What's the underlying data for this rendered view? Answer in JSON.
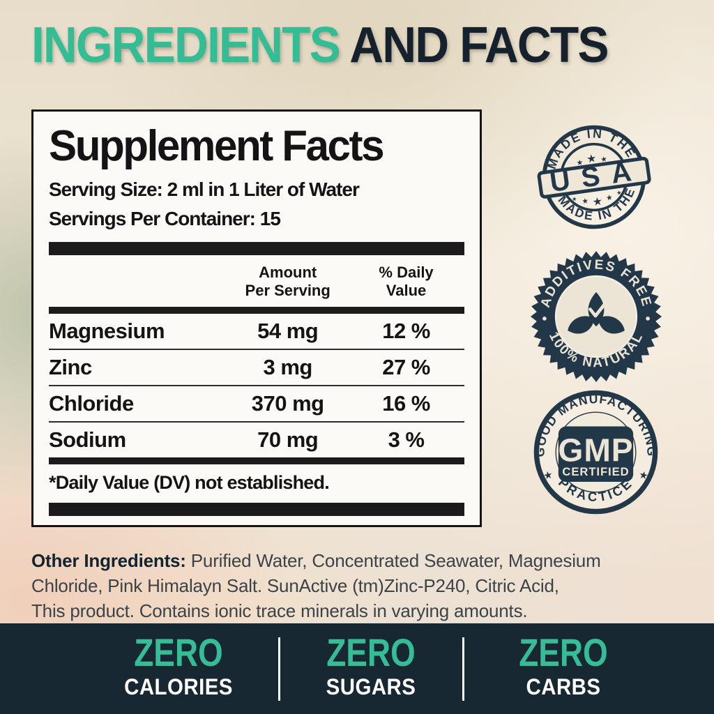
{
  "title": {
    "highlight": "INGREDIENTS",
    "rest": " AND FACTS"
  },
  "supplement_facts": {
    "heading": "Supplement Facts",
    "serving_size": "Serving Size: 2 ml in 1 Liter of Water",
    "servings_per_container": "Servings Per Container: 15",
    "columns": {
      "amount_line1": "Amount",
      "amount_line2": "Per Serving",
      "dv_line1": "% Daily",
      "dv_line2": "Value"
    },
    "rows": [
      {
        "name": "Magnesium",
        "amount": "54 mg",
        "daily_value": "12 %"
      },
      {
        "name": "Zinc",
        "amount": "3 mg",
        "daily_value": "27 %"
      },
      {
        "name": "Chloride",
        "amount": "370 mg",
        "daily_value": "16 %"
      },
      {
        "name": "Sodium",
        "amount": "70 mg",
        "daily_value": "3 %"
      }
    ],
    "footnote": "*Daily Value (DV) not established."
  },
  "badges": {
    "usa": {
      "arc_top": "MADE IN THE",
      "center": "USA",
      "arc_bottom": "MADE IN THE"
    },
    "natural": {
      "arc_top": "ADDITIVES FREE",
      "arc_bottom": "100% NATURAL"
    },
    "gmp": {
      "arc_top": "GOOD MANUFACTURING",
      "center_line1": "GMP",
      "center_line2": "CERTIFIED",
      "arc_bottom": "PRACTICE"
    }
  },
  "other_ingredients": {
    "label": "Other Ingredients:",
    "line1_rest": " Purified Water, Concentrated Seawater, Magnesium",
    "line2": "Chloride, Pink Himalayn Salt. SunActive (tm)Zinc-P240, Citric Acid,",
    "line3": "This product. Contains ionic trace minerals in varying amounts."
  },
  "footer": {
    "items": [
      {
        "zero": "ZERO",
        "label": "CALORIES"
      },
      {
        "zero": "ZERO",
        "label": "SUGARS"
      },
      {
        "zero": "ZERO",
        "label": "CARBS"
      }
    ]
  },
  "colors": {
    "teal": "#34bd94",
    "navy": "#15222d",
    "badge_navy": "#223748",
    "footer_bg": "#182832"
  }
}
